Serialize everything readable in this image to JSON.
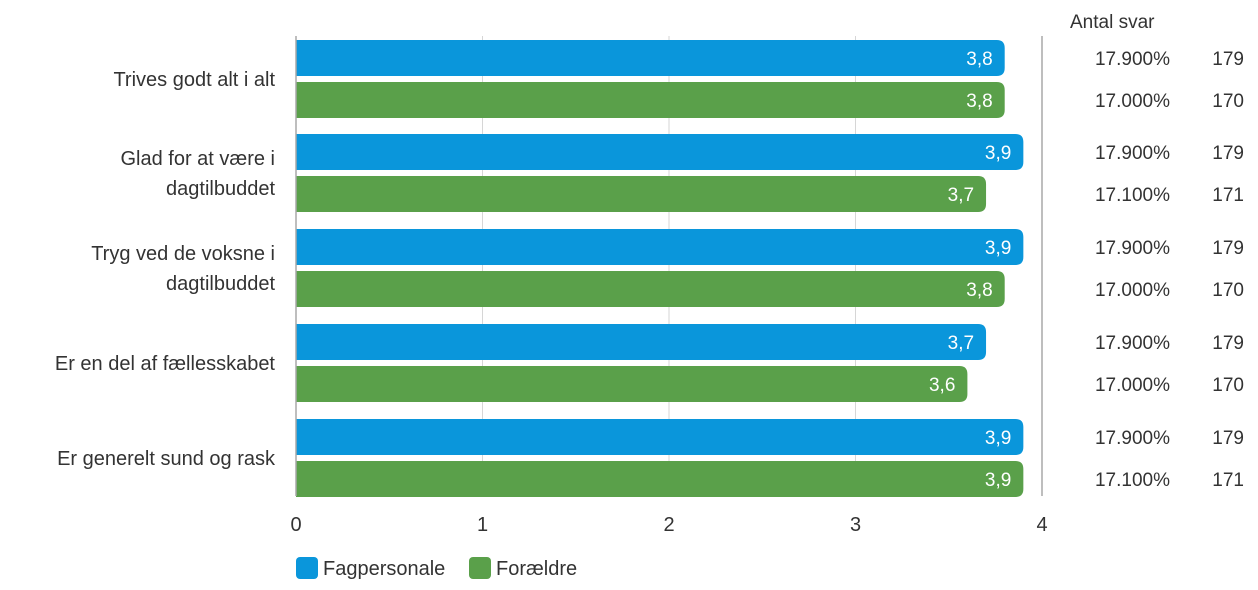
{
  "chart_data": {
    "type": "bar",
    "orientation": "horizontal",
    "categories": [
      [
        "Trives godt alt i alt"
      ],
      [
        "Glad for at være i",
        "dagtilbuddet"
      ],
      [
        "Tryg ved de voksne i",
        "dagtilbuddet"
      ],
      [
        "Er en del af fællesskabet"
      ],
      [
        "Er generelt sund og rask"
      ]
    ],
    "series": [
      {
        "name": "Fagpersonale",
        "color": "#0a96db",
        "values": [
          3.8,
          3.9,
          3.9,
          3.7,
          3.9
        ],
        "labels": [
          "3,8",
          "3,9",
          "3,9",
          "3,7",
          "3,9"
        ],
        "pct": [
          "17.900%",
          "17.900%",
          "17.900%",
          "17.900%",
          "17.900%"
        ],
        "counts": [
          "179",
          "179",
          "179",
          "179",
          "179"
        ]
      },
      {
        "name": "Forældre",
        "color": "#5aa04a",
        "values": [
          3.8,
          3.7,
          3.8,
          3.6,
          3.9
        ],
        "labels": [
          "3,8",
          "3,7",
          "3,8",
          "3,6",
          "3,9"
        ],
        "pct": [
          "17.000%",
          "17.100%",
          "17.000%",
          "17.000%",
          "17.100%"
        ],
        "counts": [
          "170",
          "171",
          "170",
          "170",
          "171"
        ]
      }
    ],
    "xlim": [
      0,
      4
    ],
    "xticks": [
      "0",
      "1",
      "2",
      "3",
      "4"
    ],
    "grid": true,
    "legend_position": "bottom-left",
    "count_header": "Antal svar"
  }
}
